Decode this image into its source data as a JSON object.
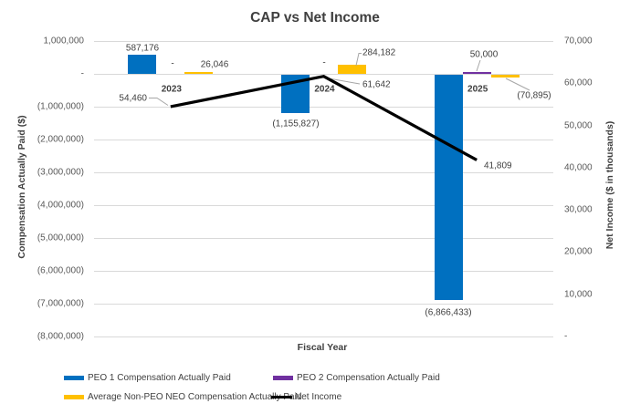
{
  "title": "CAP vs Net Income",
  "axes": {
    "x": {
      "title": "Fiscal Year",
      "categories": [
        "2023",
        "2024",
        "2025"
      ]
    },
    "left": {
      "title": "Compensation Actually Paid ($)",
      "ticks": [
        "1,000,000",
        "-",
        "(1,000,000)",
        "(2,000,000)",
        "(3,000,000)",
        "(4,000,000)",
        "(5,000,000)",
        "(6,000,000)",
        "(7,000,000)",
        "(8,000,000)"
      ]
    },
    "right": {
      "title": "Net Income ($ in thousands)",
      "ticks": [
        "70,000",
        "60,000",
        "50,000",
        "40,000",
        "30,000",
        "20,000",
        "10,000",
        "-"
      ]
    }
  },
  "chart_data": {
    "type": "bar",
    "subtype": "clustered-bar-with-line-combo",
    "categories": [
      "2023",
      "2024",
      "2025"
    ],
    "series": [
      {
        "name": "PEO 1 Compensation Actually Paid",
        "kind": "bar",
        "axis": "left",
        "color": "#0070C0",
        "values": [
          587176,
          -1155827,
          -6866433
        ],
        "labels": [
          "587,176",
          "(1,155,827)",
          "(6,866,433)"
        ]
      },
      {
        "name": "PEO 2 Compensation Actually Paid",
        "kind": "bar",
        "axis": "left",
        "color": "#7030A0",
        "values": [
          null,
          null,
          50000
        ],
        "labels": [
          "-",
          "-",
          "50,000"
        ]
      },
      {
        "name": "Average Non-PEO NEO Compensation Actually Paid",
        "kind": "bar",
        "axis": "left",
        "color": "#FFC000",
        "values": [
          26046,
          284182,
          -70895
        ],
        "labels": [
          "26,046",
          "284,182",
          "(70,895)"
        ]
      },
      {
        "name": "Net Income",
        "kind": "line",
        "axis": "right",
        "color": "#000000",
        "values": [
          54460,
          61642,
          41809
        ],
        "labels": [
          "54,460",
          "61,642",
          "41,809"
        ]
      }
    ],
    "left_axis_range": [
      -8000000,
      1000000
    ],
    "right_axis_range": [
      0,
      70000
    ],
    "grid": "horizontal",
    "legend_position": "bottom",
    "title": "CAP vs Net Income",
    "xlabel": "Fiscal Year",
    "ylabel_left": "Compensation Actually Paid ($)",
    "ylabel_right": "Net Income ($ in thousands)"
  },
  "legend": {
    "items": [
      {
        "label": "PEO 1 Compensation Actually Paid",
        "color": "#0070C0",
        "swatch": "bar"
      },
      {
        "label": "PEO 2 Compensation Actually Paid",
        "color": "#7030A0",
        "swatch": "bar"
      },
      {
        "label": "Average Non-PEO NEO Compensation Actually Paid",
        "color": "#FFC000",
        "swatch": "bar"
      },
      {
        "label": "Net Income",
        "color": "#000000",
        "swatch": "line"
      }
    ]
  },
  "colors": {
    "gridline": "#D9D9D9",
    "tick_text": "#595959",
    "label_text": "#404040",
    "leader_line": "#A6A6A6",
    "title_text": "#3F3F3F"
  }
}
